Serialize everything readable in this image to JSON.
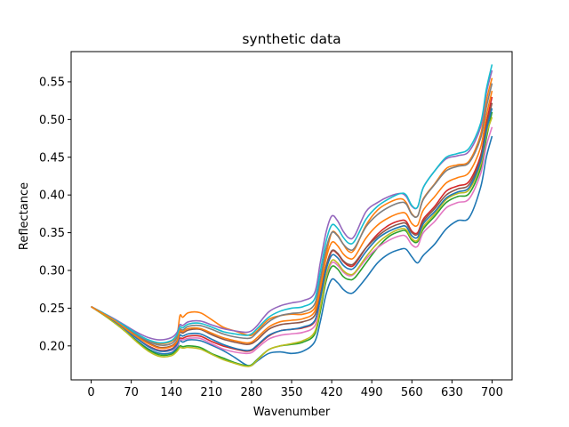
{
  "chart_data": {
    "type": "line",
    "title": "synthetic data",
    "xlabel": "Wavenumber",
    "ylabel": "Reflectance",
    "xlim": [
      -35,
      735
    ],
    "ylim": [
      0.155,
      0.59
    ],
    "xticks": [
      0,
      70,
      140,
      210,
      280,
      350,
      420,
      490,
      560,
      630,
      700
    ],
    "yticks": [
      0.2,
      0.25,
      0.3,
      0.35,
      0.4,
      0.45,
      0.5,
      0.55
    ],
    "ytick_labels": [
      "0.20",
      "0.25",
      "0.30",
      "0.35",
      "0.40",
      "0.45",
      "0.50",
      "0.55"
    ],
    "grid": false,
    "colors": [
      "#1f77b4",
      "#ff7f0e",
      "#2ca02c",
      "#d62728",
      "#9467bd",
      "#8c564b",
      "#e377c2",
      "#7f7f7f",
      "#bcbd22",
      "#17becf"
    ],
    "x": [
      0,
      20,
      40,
      60,
      80,
      100,
      120,
      140,
      150,
      155,
      160,
      170,
      190,
      210,
      230,
      250,
      270,
      280,
      290,
      310,
      330,
      350,
      370,
      390,
      400,
      410,
      420,
      430,
      440,
      450,
      460,
      480,
      500,
      520,
      540,
      550,
      560,
      570,
      580,
      600,
      620,
      640,
      660,
      680,
      690,
      700
    ],
    "series": [
      {
        "values": [
          0.252,
          0.242,
          0.232,
          0.22,
          0.207,
          0.196,
          0.19,
          0.191,
          0.198,
          0.207,
          0.205,
          0.208,
          0.207,
          0.201,
          0.194,
          0.185,
          0.175,
          0.174,
          0.18,
          0.19,
          0.192,
          0.19,
          0.193,
          0.205,
          0.232,
          0.268,
          0.288,
          0.284,
          0.275,
          0.27,
          0.272,
          0.29,
          0.31,
          0.322,
          0.328,
          0.328,
          0.318,
          0.31,
          0.32,
          0.335,
          0.355,
          0.366,
          0.37,
          0.41,
          0.45,
          0.478
        ]
      },
      {
        "values": [
          0.252,
          0.243,
          0.234,
          0.224,
          0.214,
          0.206,
          0.203,
          0.206,
          0.215,
          0.24,
          0.238,
          0.244,
          0.244,
          0.235,
          0.225,
          0.22,
          0.215,
          0.214,
          0.22,
          0.235,
          0.24,
          0.242,
          0.242,
          0.25,
          0.28,
          0.32,
          0.35,
          0.347,
          0.335,
          0.325,
          0.328,
          0.36,
          0.38,
          0.39,
          0.395,
          0.39,
          0.375,
          0.372,
          0.395,
          0.415,
          0.435,
          0.44,
          0.445,
          0.48,
          0.525,
          0.555
        ]
      },
      {
        "values": [
          0.252,
          0.242,
          0.231,
          0.219,
          0.206,
          0.195,
          0.188,
          0.189,
          0.195,
          0.2,
          0.199,
          0.2,
          0.198,
          0.19,
          0.184,
          0.178,
          0.174,
          0.175,
          0.182,
          0.195,
          0.2,
          0.202,
          0.205,
          0.215,
          0.245,
          0.285,
          0.305,
          0.302,
          0.292,
          0.288,
          0.29,
          0.31,
          0.33,
          0.345,
          0.352,
          0.352,
          0.34,
          0.338,
          0.355,
          0.372,
          0.39,
          0.398,
          0.402,
          0.435,
          0.475,
          0.51
        ]
      },
      {
        "values": [
          0.252,
          0.243,
          0.233,
          0.222,
          0.21,
          0.2,
          0.194,
          0.196,
          0.203,
          0.21,
          0.21,
          0.213,
          0.213,
          0.206,
          0.2,
          0.196,
          0.193,
          0.194,
          0.2,
          0.213,
          0.22,
          0.222,
          0.224,
          0.232,
          0.262,
          0.302,
          0.325,
          0.322,
          0.312,
          0.306,
          0.308,
          0.33,
          0.348,
          0.36,
          0.366,
          0.365,
          0.352,
          0.35,
          0.368,
          0.385,
          0.405,
          0.412,
          0.418,
          0.452,
          0.495,
          0.53
        ]
      },
      {
        "values": [
          0.252,
          0.244,
          0.236,
          0.227,
          0.218,
          0.211,
          0.208,
          0.211,
          0.218,
          0.228,
          0.227,
          0.232,
          0.233,
          0.228,
          0.223,
          0.22,
          0.218,
          0.22,
          0.227,
          0.245,
          0.253,
          0.257,
          0.26,
          0.27,
          0.31,
          0.35,
          0.372,
          0.366,
          0.352,
          0.343,
          0.346,
          0.378,
          0.39,
          0.398,
          0.402,
          0.398,
          0.385,
          0.384,
          0.41,
          0.432,
          0.448,
          0.452,
          0.458,
          0.49,
          0.535,
          0.565
        ]
      },
      {
        "values": [
          0.252,
          0.243,
          0.234,
          0.224,
          0.213,
          0.204,
          0.198,
          0.2,
          0.207,
          0.218,
          0.217,
          0.221,
          0.222,
          0.215,
          0.209,
          0.205,
          0.202,
          0.203,
          0.208,
          0.222,
          0.228,
          0.23,
          0.232,
          0.24,
          0.268,
          0.305,
          0.326,
          0.323,
          0.313,
          0.308,
          0.31,
          0.33,
          0.345,
          0.356,
          0.362,
          0.362,
          0.35,
          0.348,
          0.365,
          0.382,
          0.4,
          0.408,
          0.414,
          0.448,
          0.49,
          0.522
        ]
      },
      {
        "values": [
          0.252,
          0.243,
          0.233,
          0.222,
          0.21,
          0.199,
          0.193,
          0.194,
          0.2,
          0.208,
          0.208,
          0.21,
          0.21,
          0.203,
          0.196,
          0.192,
          0.19,
          0.191,
          0.197,
          0.209,
          0.214,
          0.216,
          0.218,
          0.226,
          0.252,
          0.29,
          0.31,
          0.307,
          0.298,
          0.293,
          0.296,
          0.315,
          0.33,
          0.34,
          0.346,
          0.345,
          0.334,
          0.332,
          0.35,
          0.365,
          0.383,
          0.39,
          0.395,
          0.428,
          0.465,
          0.49
        ]
      },
      {
        "values": [
          0.252,
          0.243,
          0.234,
          0.224,
          0.214,
          0.206,
          0.201,
          0.203,
          0.211,
          0.222,
          0.221,
          0.226,
          0.227,
          0.222,
          0.216,
          0.212,
          0.21,
          0.211,
          0.218,
          0.232,
          0.24,
          0.243,
          0.245,
          0.255,
          0.288,
          0.328,
          0.35,
          0.346,
          0.335,
          0.328,
          0.33,
          0.358,
          0.374,
          0.384,
          0.39,
          0.388,
          0.374,
          0.372,
          0.394,
          0.414,
          0.432,
          0.438,
          0.443,
          0.475,
          0.516,
          0.548
        ]
      },
      {
        "values": [
          0.252,
          0.242,
          0.231,
          0.219,
          0.205,
          0.193,
          0.186,
          0.187,
          0.193,
          0.198,
          0.197,
          0.198,
          0.196,
          0.189,
          0.182,
          0.177,
          0.173,
          0.174,
          0.181,
          0.195,
          0.2,
          0.203,
          0.207,
          0.218,
          0.25,
          0.292,
          0.313,
          0.31,
          0.3,
          0.295,
          0.297,
          0.318,
          0.336,
          0.348,
          0.355,
          0.354,
          0.342,
          0.34,
          0.358,
          0.375,
          0.394,
          0.402,
          0.407,
          0.44,
          0.48,
          0.503
        ]
      },
      {
        "values": [
          0.252,
          0.244,
          0.235,
          0.226,
          0.216,
          0.208,
          0.204,
          0.207,
          0.215,
          0.225,
          0.224,
          0.229,
          0.23,
          0.225,
          0.219,
          0.216,
          0.214,
          0.216,
          0.223,
          0.238,
          0.246,
          0.25,
          0.252,
          0.262,
          0.298,
          0.338,
          0.36,
          0.356,
          0.344,
          0.336,
          0.339,
          0.368,
          0.385,
          0.395,
          0.402,
          0.4,
          0.386,
          0.384,
          0.41,
          0.432,
          0.45,
          0.455,
          0.462,
          0.495,
          0.54,
          0.573
        ]
      },
      {
        "values": [
          0.252,
          0.243,
          0.233,
          0.222,
          0.21,
          0.199,
          0.193,
          0.195,
          0.202,
          0.214,
          0.213,
          0.216,
          0.216,
          0.209,
          0.202,
          0.197,
          0.194,
          0.195,
          0.201,
          0.214,
          0.22,
          0.222,
          0.225,
          0.233,
          0.262,
          0.3,
          0.32,
          0.317,
          0.307,
          0.302,
          0.304,
          0.325,
          0.342,
          0.352,
          0.358,
          0.358,
          0.346,
          0.344,
          0.362,
          0.378,
          0.396,
          0.404,
          0.41,
          0.444,
          0.485,
          0.515
        ]
      },
      {
        "values": [
          0.252,
          0.243,
          0.234,
          0.223,
          0.212,
          0.203,
          0.197,
          0.199,
          0.206,
          0.22,
          0.219,
          0.223,
          0.223,
          0.217,
          0.211,
          0.207,
          0.204,
          0.205,
          0.211,
          0.225,
          0.232,
          0.234,
          0.236,
          0.245,
          0.276,
          0.315,
          0.337,
          0.333,
          0.322,
          0.316,
          0.318,
          0.343,
          0.36,
          0.37,
          0.376,
          0.375,
          0.362,
          0.36,
          0.38,
          0.398,
          0.416,
          0.423,
          0.43,
          0.463,
          0.505,
          0.538
        ]
      }
    ]
  }
}
